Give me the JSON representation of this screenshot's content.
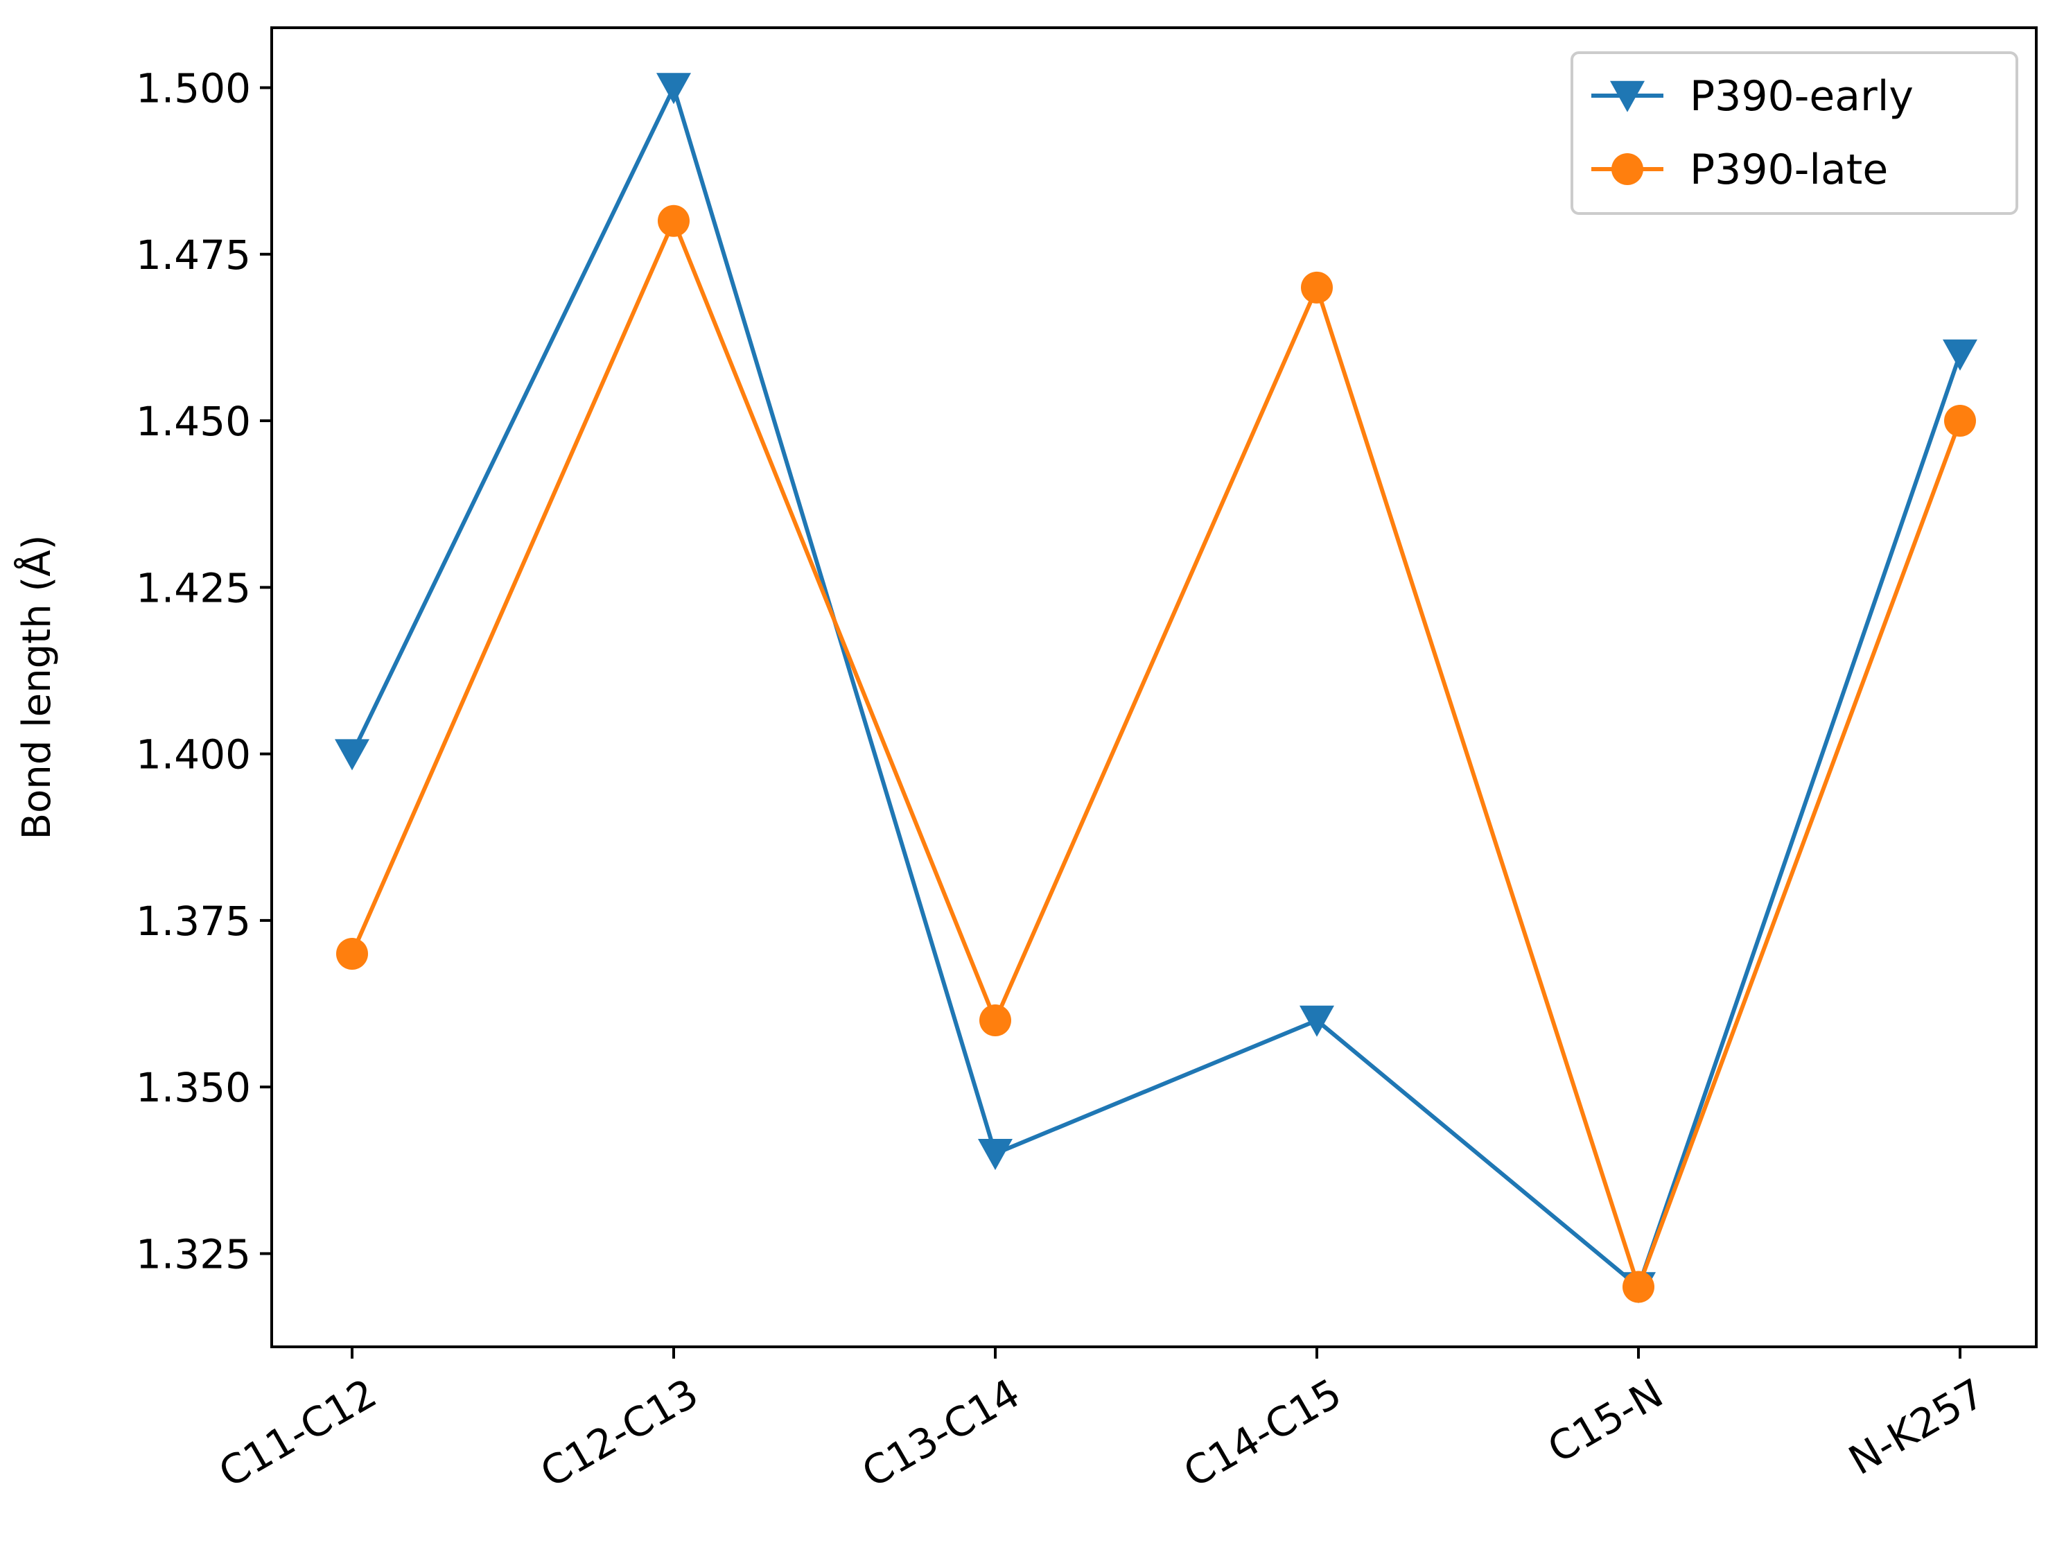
{
  "chart_data": {
    "type": "line",
    "title": "",
    "xlabel": "",
    "ylabel": "Bond length (Å)",
    "categories": [
      "C11-C12",
      "C12-C13",
      "C13-C14",
      "C14-C15",
      "C15-N",
      "N-K257"
    ],
    "ylim": [
      1.311,
      1.509
    ],
    "yticks": [
      1.325,
      1.35,
      1.375,
      1.4,
      1.425,
      1.45,
      1.475,
      1.5
    ],
    "ytick_labels": [
      "1.325",
      "1.350",
      "1.375",
      "1.400",
      "1.425",
      "1.450",
      "1.475",
      "1.500"
    ],
    "grid": false,
    "legend_position": "top-right",
    "series": [
      {
        "name": "P390-early",
        "marker": "triangle-down",
        "color": "#1f77b4",
        "values": [
          1.4,
          1.5,
          1.34,
          1.36,
          1.32,
          1.46
        ]
      },
      {
        "name": "P390-late",
        "marker": "circle",
        "color": "#ff7f0e",
        "values": [
          1.37,
          1.48,
          1.36,
          1.47,
          1.32,
          1.45
        ]
      }
    ]
  }
}
